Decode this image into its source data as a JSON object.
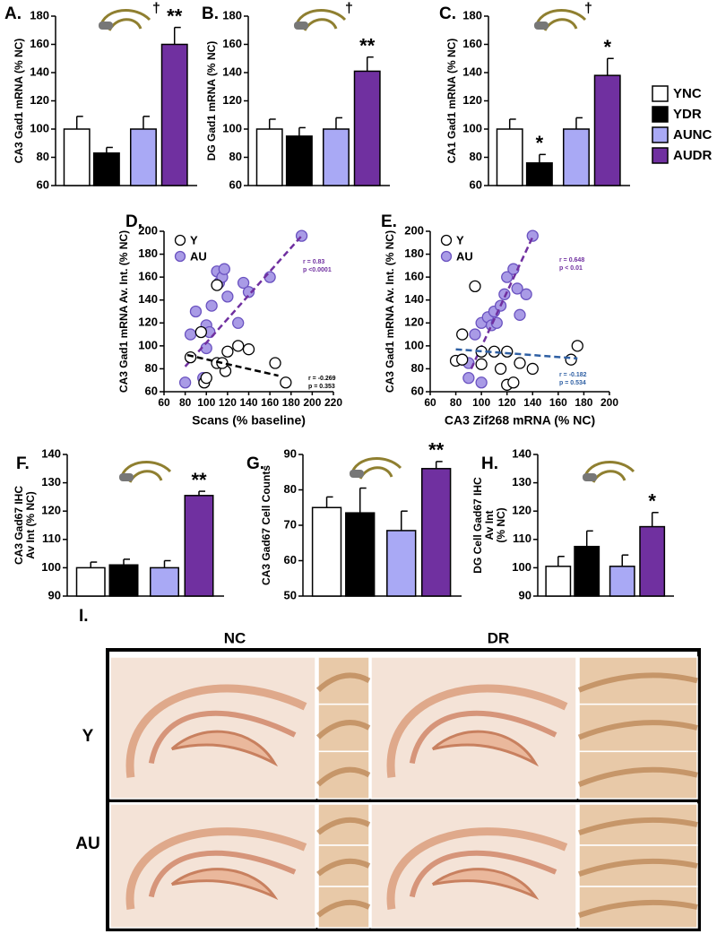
{
  "chart_data": [
    {
      "type": "bar",
      "label": "A.",
      "marker": "†",
      "ylabel": "CA3 Gad1 mRNA (% NC)",
      "ylim": [
        60,
        180
      ],
      "yticks": [
        60,
        80,
        100,
        120,
        140,
        160,
        180
      ],
      "values": [
        100,
        83,
        100,
        160
      ],
      "errors": [
        9,
        4,
        9,
        12
      ],
      "colors": [
        "#ffffff",
        "#000000",
        "#a9a9f5",
        "#7030a0"
      ],
      "significance": [
        null,
        null,
        null,
        "**"
      ]
    },
    {
      "type": "bar",
      "label": "B.",
      "marker": "†",
      "ylabel": "DG Gad1 mRNA (% NC)",
      "ylim": [
        60,
        180
      ],
      "yticks": [
        60,
        80,
        100,
        120,
        140,
        160,
        180
      ],
      "values": [
        100,
        95,
        100,
        141
      ],
      "errors": [
        7,
        6,
        8,
        10
      ],
      "colors": [
        "#ffffff",
        "#000000",
        "#a9a9f5",
        "#7030a0"
      ],
      "significance": [
        null,
        null,
        null,
        "**"
      ]
    },
    {
      "type": "bar",
      "label": "C.",
      "marker": "†",
      "ylabel": "CA1 Gad1 mRNA (% NC)",
      "ylim": [
        60,
        180
      ],
      "yticks": [
        60,
        80,
        100,
        120,
        140,
        160,
        180
      ],
      "values": [
        100,
        76,
        100,
        138
      ],
      "errors": [
        7,
        6,
        8,
        12
      ],
      "colors": [
        "#ffffff",
        "#000000",
        "#a9a9f5",
        "#7030a0"
      ],
      "significance": [
        null,
        "*",
        null,
        "*"
      ],
      "legend": [
        "YNC",
        "YDR",
        "AUNC",
        "AUDR"
      ]
    },
    {
      "type": "scatter",
      "label": "D.",
      "ylabel": "CA3 Gad1 mRNA Av. Int. (% NC)",
      "xlabel": "Scans  (% baseline)",
      "xlim": [
        60,
        220
      ],
      "xticks": [
        60,
        80,
        100,
        120,
        140,
        160,
        180,
        200,
        220
      ],
      "ylim": [
        60,
        200
      ],
      "yticks": [
        60,
        80,
        100,
        120,
        140,
        160,
        180,
        200
      ],
      "series": [
        {
          "name": "AU",
          "color": "#7030a0",
          "fill": "#a99be6",
          "x": [
            80,
            85,
            90,
            97,
            100,
            103,
            105,
            110,
            112,
            115,
            117,
            120,
            130,
            135,
            140,
            160,
            190,
            100
          ],
          "y": [
            68,
            110,
            130,
            72,
            118,
            112,
            135,
            165,
            155,
            160,
            167,
            143,
            120,
            155,
            147,
            160,
            196,
            98
          ],
          "fit_x": [
            80,
            190
          ],
          "fit_y": [
            82,
            196
          ],
          "stats": [
            "r = 0.83",
            "p <0.0001"
          ]
        },
        {
          "name": "Y",
          "color": "#000000",
          "fill": "#ffffff",
          "x": [
            85,
            95,
            110,
            98,
            110,
            118,
            120,
            130,
            140,
            115,
            165,
            175,
            100
          ],
          "y": [
            90,
            112,
            153,
            68,
            85,
            78,
            95,
            100,
            97,
            85,
            85,
            68,
            72
          ],
          "fit_x": [
            82,
            168
          ],
          "fit_y": [
            92,
            74
          ],
          "stats": [
            "r = -0.269",
            "p = 0.353"
          ]
        }
      ]
    },
    {
      "type": "scatter",
      "label": "E.",
      "ylabel": "CA3 Gad1 mRNA Av. Int. (% NC)",
      "xlabel": "CA3 Zif268 mRNA (% NC)",
      "xlim": [
        60,
        200
      ],
      "xticks": [
        60,
        80,
        100,
        120,
        140,
        160,
        180,
        200
      ],
      "ylim": [
        60,
        200
      ],
      "yticks": [
        60,
        80,
        100,
        120,
        140,
        160,
        180,
        200
      ],
      "series": [
        {
          "name": "AU",
          "color": "#7030a0",
          "fill": "#a99be6",
          "x": [
            85,
            90,
            95,
            100,
            100,
            105,
            108,
            110,
            115,
            118,
            120,
            125,
            128,
            130,
            135,
            140,
            90,
            112
          ],
          "y": [
            88,
            72,
            110,
            68,
            120,
            125,
            118,
            130,
            135,
            145,
            160,
            167,
            150,
            127,
            145,
            196,
            85,
            120
          ],
          "fit_x": [
            92,
            140
          ],
          "fit_y": [
            80,
            195
          ],
          "stats": [
            "r = 0.648",
            "p < 0.01"
          ]
        },
        {
          "name": "Y",
          "color": "#2e5fa3",
          "fill": "#ffffff",
          "x": [
            80,
            85,
            95,
            100,
            100,
            110,
            115,
            120,
            120,
            130,
            140,
            170,
            175,
            85,
            125
          ],
          "y": [
            87,
            88,
            152,
            84,
            95,
            95,
            80,
            66,
            95,
            85,
            80,
            88,
            100,
            110,
            68
          ],
          "fit_x": [
            80,
            175
          ],
          "fit_y": [
            97,
            89
          ],
          "stats": [
            "r = -0.182",
            "p = 0.534"
          ]
        }
      ]
    },
    {
      "type": "bar",
      "label": "F.",
      "ylabel": [
        "CA3 Gad67  IHC",
        "Av Int  (% NC)"
      ],
      "ylim": [
        90,
        140
      ],
      "yticks": [
        90,
        100,
        110,
        120,
        130,
        140
      ],
      "values": [
        100,
        101,
        100,
        125.5
      ],
      "errors": [
        2,
        2,
        2.5,
        1.5
      ],
      "colors": [
        "#ffffff",
        "#000000",
        "#a9a9f5",
        "#7030a0"
      ],
      "significance": [
        null,
        null,
        null,
        "**"
      ]
    },
    {
      "type": "bar",
      "label": "G.",
      "ylabel": "CA3 Gad67 Cell Counts",
      "ylim": [
        50,
        90
      ],
      "yticks": [
        50,
        60,
        70,
        80,
        90
      ],
      "values": [
        75,
        73.5,
        68.5,
        86
      ],
      "errors": [
        3,
        7,
        5.5,
        2
      ],
      "colors": [
        "#ffffff",
        "#000000",
        "#a9a9f5",
        "#7030a0"
      ],
      "significance": [
        null,
        null,
        null,
        "**"
      ]
    },
    {
      "type": "bar",
      "label": "H.",
      "ylabel": [
        "DG Cell Gad67  IHC",
        "Av Int",
        "(% NC)"
      ],
      "ylim": [
        90,
        140
      ],
      "yticks": [
        90,
        100,
        110,
        120,
        130,
        140
      ],
      "values": [
        100.5,
        107.5,
        100.5,
        114.5
      ],
      "errors": [
        3.5,
        5.5,
        4,
        5
      ],
      "colors": [
        "#ffffff",
        "#000000",
        "#a9a9f5",
        "#7030a0"
      ],
      "significance": [
        null,
        null,
        null,
        "*"
      ]
    }
  ],
  "image_panel": {
    "label": "I.",
    "columns": [
      "NC",
      "DR"
    ],
    "rows": [
      "Y",
      "AU"
    ]
  }
}
